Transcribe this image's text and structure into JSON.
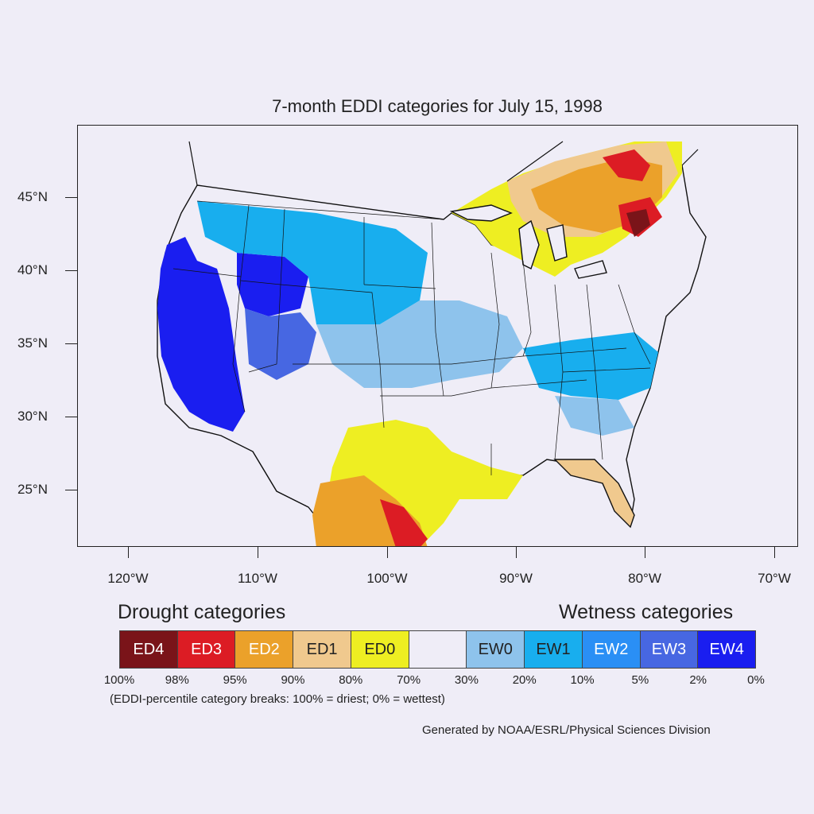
{
  "title": "7-month EDDI categories for July 15, 1998",
  "lat_labels": [
    {
      "value": 45,
      "text": "45°N"
    },
    {
      "value": 40,
      "text": "40°N"
    },
    {
      "value": 35,
      "text": "35°N"
    },
    {
      "value": 30,
      "text": "30°N"
    },
    {
      "value": 25,
      "text": "25°N"
    }
  ],
  "lon_labels": [
    {
      "value": -120,
      "text": "120°W"
    },
    {
      "value": -110,
      "text": "110°W"
    },
    {
      "value": -100,
      "text": "100°W"
    },
    {
      "value": -90,
      "text": "90°W"
    },
    {
      "value": -80,
      "text": "80°W"
    },
    {
      "value": -70,
      "text": "70°W"
    }
  ],
  "legend": {
    "drought_title": "Drought categories",
    "wetness_title": "Wetness categories",
    "categories": [
      {
        "label": "ED4",
        "color": "#7a1419",
        "text_color": "#ffffff"
      },
      {
        "label": "ED3",
        "color": "#dc1c24",
        "text_color": "#ffffff"
      },
      {
        "label": "ED2",
        "color": "#eba12a",
        "text_color": "#ffffff"
      },
      {
        "label": "ED1",
        "color": "#f0c98e",
        "text_color": "#222222"
      },
      {
        "label": "ED0",
        "color": "#eeee22",
        "text_color": "#222222"
      },
      {
        "label": "",
        "color": "#efedf7",
        "text_color": "#222222"
      },
      {
        "label": "EW0",
        "color": "#8ec3ec",
        "text_color": "#222222"
      },
      {
        "label": "EW1",
        "color": "#18aeee",
        "text_color": "#222222"
      },
      {
        "label": "EW2",
        "color": "#2a8ff5",
        "text_color": "#ffffff"
      },
      {
        "label": "EW3",
        "color": "#4767e2",
        "text_color": "#ffffff"
      },
      {
        "label": "EW4",
        "color": "#1a1ef0",
        "text_color": "#ffffff"
      }
    ],
    "breaks": [
      "100%",
      "98%",
      "95%",
      "90%",
      "80%",
      "70%",
      "30%",
      "20%",
      "10%",
      "5%",
      "2%",
      "0%"
    ],
    "note": "(EDDI-percentile category breaks: 100% = driest; 0% = wettest)"
  },
  "credit": "Generated by NOAA/ESRL/Physical Sciences Division"
}
